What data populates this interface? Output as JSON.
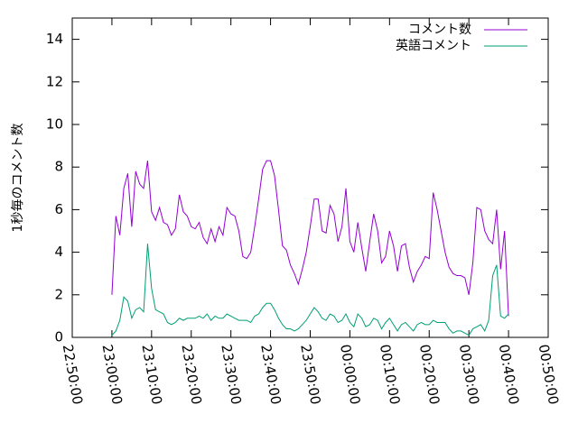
{
  "chart_data": {
    "type": "line",
    "y_label": "1秒毎のコメント数",
    "x": [
      "23:00:00",
      "23:01:00",
      "23:02:00",
      "23:03:00",
      "23:04:00",
      "23:05:00",
      "23:06:00",
      "23:07:00",
      "23:08:00",
      "23:09:00",
      "23:10:00",
      "23:11:00",
      "23:12:00",
      "23:13:00",
      "23:14:00",
      "23:15:00",
      "23:16:00",
      "23:17:00",
      "23:18:00",
      "23:19:00",
      "23:20:00",
      "23:21:00",
      "23:22:00",
      "23:23:00",
      "23:24:00",
      "23:25:00",
      "23:26:00",
      "23:27:00",
      "23:28:00",
      "23:29:00",
      "23:30:00",
      "23:31:00",
      "23:32:00",
      "23:33:00",
      "23:34:00",
      "23:35:00",
      "23:36:00",
      "23:37:00",
      "23:38:00",
      "23:39:00",
      "23:40:00",
      "23:41:00",
      "23:42:00",
      "23:43:00",
      "23:44:00",
      "23:45:00",
      "23:46:00",
      "23:47:00",
      "23:48:00",
      "23:49:00",
      "23:50:00",
      "23:51:00",
      "23:52:00",
      "23:53:00",
      "23:54:00",
      "23:55:00",
      "23:56:00",
      "23:57:00",
      "23:58:00",
      "23:59:00",
      "00:00:00",
      "00:01:00",
      "00:02:00",
      "00:03:00",
      "00:04:00",
      "00:05:00",
      "00:06:00",
      "00:07:00",
      "00:08:00",
      "00:09:00",
      "00:10:00",
      "00:11:00",
      "00:12:00",
      "00:13:00",
      "00:14:00",
      "00:15:00",
      "00:16:00",
      "00:17:00",
      "00:18:00",
      "00:19:00",
      "00:20:00",
      "00:21:00",
      "00:22:00",
      "00:23:00",
      "00:24:00",
      "00:25:00",
      "00:26:00",
      "00:27:00",
      "00:28:00",
      "00:29:00",
      "00:30:00",
      "00:31:00",
      "00:32:00",
      "00:33:00",
      "00:34:00",
      "00:35:00",
      "00:36:00",
      "00:37:00",
      "00:38:00",
      "00:39:00",
      "00:40:00"
    ],
    "series": [
      {
        "name": "コメント数",
        "color": "#9400d3",
        "values": [
          2.0,
          5.7,
          4.8,
          7.0,
          7.7,
          5.2,
          7.8,
          7.2,
          7.0,
          8.3,
          5.9,
          5.5,
          6.1,
          5.4,
          5.3,
          4.8,
          5.1,
          6.7,
          5.9,
          5.7,
          5.2,
          5.1,
          5.4,
          4.7,
          4.4,
          5.1,
          4.5,
          5.2,
          4.8,
          6.1,
          5.8,
          5.7,
          5.0,
          3.8,
          3.7,
          4.0,
          5.2,
          6.5,
          7.9,
          8.3,
          8.3,
          7.6,
          6.0,
          4.3,
          4.1,
          3.4,
          3.0,
          2.5,
          3.2,
          4.0,
          5.2,
          6.5,
          6.5,
          5.0,
          4.9,
          6.2,
          5.8,
          4.5,
          5.2,
          7.0,
          4.5,
          4.0,
          5.4,
          4.2,
          3.1,
          4.5,
          5.8,
          5.0,
          3.5,
          3.8,
          5.0,
          4.3,
          3.1,
          4.3,
          4.4,
          3.3,
          2.6,
          3.1,
          3.4,
          3.8,
          3.7,
          6.8,
          6.0,
          5.0,
          4.0,
          3.3,
          3.0,
          2.9,
          2.9,
          2.8,
          2.0,
          3.5,
          6.1,
          6.0,
          5.0,
          4.6,
          4.4,
          6.0,
          3.2,
          5.0,
          1.0
        ]
      },
      {
        "name": "英語コメント",
        "color": "#009e73",
        "values": [
          0.1,
          0.3,
          0.8,
          1.9,
          1.7,
          0.9,
          1.3,
          1.4,
          1.2,
          4.4,
          2.3,
          1.3,
          1.2,
          1.1,
          0.7,
          0.6,
          0.7,
          0.9,
          0.8,
          0.9,
          0.9,
          0.9,
          1.0,
          0.9,
          1.1,
          0.8,
          1.0,
          0.9,
          0.9,
          1.1,
          1.0,
          0.9,
          0.8,
          0.8,
          0.8,
          0.7,
          1.0,
          1.1,
          1.4,
          1.6,
          1.6,
          1.3,
          0.9,
          0.6,
          0.4,
          0.4,
          0.3,
          0.4,
          0.6,
          0.8,
          1.1,
          1.4,
          1.2,
          0.9,
          0.8,
          1.1,
          1.0,
          0.7,
          0.8,
          1.1,
          0.7,
          0.5,
          1.1,
          0.9,
          0.5,
          0.6,
          0.9,
          0.8,
          0.4,
          0.7,
          0.9,
          0.6,
          0.3,
          0.6,
          0.7,
          0.5,
          0.3,
          0.6,
          0.7,
          0.6,
          0.6,
          0.8,
          0.7,
          0.7,
          0.7,
          0.4,
          0.2,
          0.3,
          0.3,
          0.2,
          0.1,
          0.4,
          0.5,
          0.6,
          0.3,
          0.8,
          2.9,
          3.4,
          1.0,
          0.9,
          1.1
        ]
      }
    ],
    "xlim": [
      "22:50:00",
      "00:50:00"
    ],
    "xticks": [
      "22:50:00",
      "23:00:00",
      "23:10:00",
      "23:20:00",
      "23:30:00",
      "23:40:00",
      "23:50:00",
      "00:00:00",
      "00:10:00",
      "00:20:00",
      "00:30:00",
      "00:40:00",
      "00:50:00"
    ],
    "ylim": [
      0,
      15
    ],
    "yticks": [
      0,
      2,
      4,
      6,
      8,
      10,
      12,
      14
    ],
    "legend": "top-right"
  }
}
